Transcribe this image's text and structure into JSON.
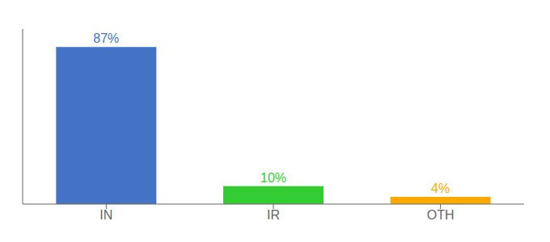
{
  "chart_data": {
    "type": "bar",
    "categories": [
      "IN",
      "IR",
      "OTH"
    ],
    "values": [
      87,
      10,
      4
    ],
    "value_labels": [
      "87%",
      "10%",
      "4%"
    ],
    "colors": [
      "#4472c4",
      "#33cc33",
      "#ffaa00"
    ],
    "ylim": [
      0,
      97
    ],
    "data_labels": true,
    "tick_labels": "x",
    "grid": false
  }
}
